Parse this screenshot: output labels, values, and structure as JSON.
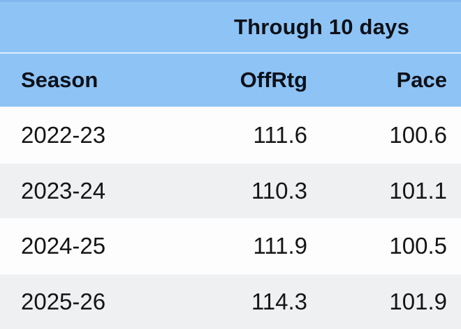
{
  "banner": {
    "title": "Through 10 days"
  },
  "table": {
    "columns": [
      "Season",
      "OffRtg",
      "Pace"
    ],
    "rows": [
      {
        "season": "2022-23",
        "offrtg": "111.6",
        "pace": "100.6"
      },
      {
        "season": "2023-24",
        "offrtg": "110.3",
        "pace": "101.1"
      },
      {
        "season": "2024-25",
        "offrtg": "111.9",
        "pace": "100.5"
      },
      {
        "season": "2025-26",
        "offrtg": "114.3",
        "pace": "101.9"
      }
    ]
  },
  "chart_data": {
    "type": "table",
    "title": "Through 10 days",
    "columns": [
      "Season",
      "OffRtg",
      "Pace"
    ],
    "rows": [
      [
        "2022-23",
        111.6,
        100.6
      ],
      [
        "2023-24",
        110.3,
        101.1
      ],
      [
        "2024-25",
        111.9,
        100.5
      ],
      [
        "2025-26",
        114.3,
        101.9
      ]
    ]
  },
  "colors": {
    "header_blue": "#8ec3f5",
    "header_blue_dark": "#7fb7ee",
    "separator_light": "#e0edfc",
    "row_white": "#fdfdfd",
    "row_gray": "#eff0f2",
    "text_dark": "#0c1118",
    "text_data": "#151515"
  }
}
